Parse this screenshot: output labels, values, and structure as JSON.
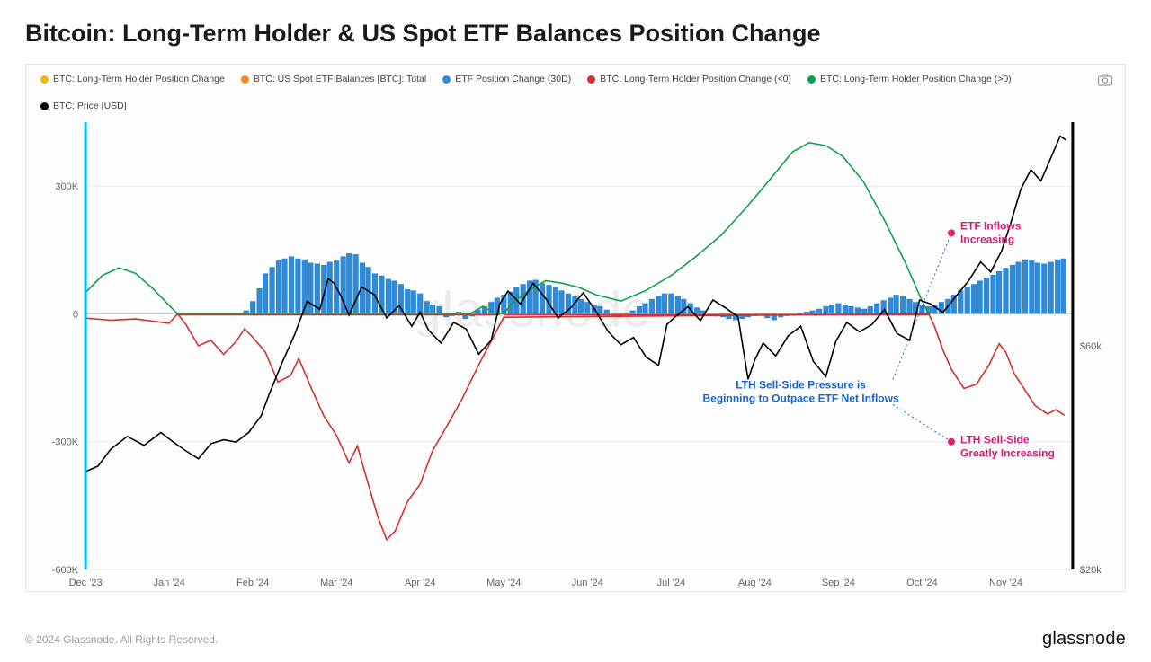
{
  "title": "Bitcoin: Long-Term Holder & US Spot ETF Balances Position Change",
  "copyright": "© 2024 Glassnode. All Rights Reserved.",
  "brand": "glassnode",
  "watermark": "glassnode",
  "legend": [
    {
      "label": "BTC: Long-Term Holder Position Change",
      "color": "#f0b90b"
    },
    {
      "label": "BTC: US Spot ETF Balances [BTC]: Total",
      "color": "#f08a24"
    },
    {
      "label": "ETF Position Change (30D)",
      "color": "#2f8ad8"
    },
    {
      "label": "BTC: Long-Term Holder Position Change (<0)",
      "color": "#d32f2f"
    },
    {
      "label": "BTC: Long-Term Holder Position Change (>0)",
      "color": "#0aa34a"
    },
    {
      "label": "BTC: Price [USD]",
      "color": "#000000"
    }
  ],
  "annotations": {
    "center": {
      "line1": "LTH Sell-Side Pressure is",
      "line2": "Beginning to Outpace ETF Net Inflows",
      "color": "#1565d8"
    },
    "top": {
      "text": "ETF Inflows Increasing",
      "color": "#d81b7a",
      "dot_color": "#e91e63"
    },
    "bottom": {
      "text": "LTH Sell-Side Greatly Increasing",
      "color": "#d81b7a",
      "dot_color": "#e91e63"
    }
  },
  "chart": {
    "type": "combo-bar-line",
    "background_color": "#fdfdfd",
    "grid_color": "#e9e9e9",
    "x": {
      "labels": [
        "Dec '23",
        "Jan '24",
        "Feb '24",
        "Mar '24",
        "Apr '24",
        "May '24",
        "Jun '24",
        "Jul '24",
        "Aug '24",
        "Sep '24",
        "Oct '24",
        "Nov '24"
      ],
      "positions": [
        0,
        1,
        2,
        3,
        4,
        5,
        6,
        7,
        8,
        9,
        10,
        11
      ],
      "max": 11.8
    },
    "y_left": {
      "min": -600000,
      "max": 450000,
      "ticks": [
        -600000,
        -300000,
        0,
        300000
      ],
      "tick_labels": [
        "-600K",
        "-300K",
        "0",
        "300K"
      ]
    },
    "y_right": {
      "min": 20000,
      "max": 100000,
      "ticks": [
        20000,
        60000
      ],
      "tick_labels": [
        "$20k",
        "$60k"
      ]
    },
    "fontsize_axis": 11,
    "colors": {
      "bars": "#2f8ad8",
      "lth_neg": "#d32f2f",
      "lth_pos": "#0aa34a",
      "price": "#000000",
      "left_bar": "#00bfff",
      "right_bar": "#000000"
    },
    "etf_bars": [
      [
        1.85,
        0
      ],
      [
        1.92,
        8000
      ],
      [
        2.0,
        30000
      ],
      [
        2.08,
        60000
      ],
      [
        2.15,
        95000
      ],
      [
        2.23,
        110000
      ],
      [
        2.31,
        125000
      ],
      [
        2.38,
        130000
      ],
      [
        2.46,
        135000
      ],
      [
        2.54,
        130000
      ],
      [
        2.62,
        128000
      ],
      [
        2.69,
        120000
      ],
      [
        2.77,
        118000
      ],
      [
        2.85,
        115000
      ],
      [
        2.92,
        122000
      ],
      [
        3.0,
        125000
      ],
      [
        3.08,
        135000
      ],
      [
        3.15,
        142000
      ],
      [
        3.23,
        140000
      ],
      [
        3.31,
        120000
      ],
      [
        3.38,
        110000
      ],
      [
        3.46,
        95000
      ],
      [
        3.54,
        90000
      ],
      [
        3.62,
        82000
      ],
      [
        3.69,
        78000
      ],
      [
        3.77,
        70000
      ],
      [
        3.85,
        58000
      ],
      [
        3.92,
        55000
      ],
      [
        4.0,
        48000
      ],
      [
        4.08,
        30000
      ],
      [
        4.15,
        22000
      ],
      [
        4.23,
        18000
      ],
      [
        4.31,
        -8000
      ],
      [
        4.38,
        -5000
      ],
      [
        4.46,
        5000
      ],
      [
        4.54,
        -12000
      ],
      [
        4.62,
        -6000
      ],
      [
        4.69,
        10000
      ],
      [
        4.77,
        18000
      ],
      [
        4.85,
        28000
      ],
      [
        4.92,
        38000
      ],
      [
        5.0,
        45000
      ],
      [
        5.08,
        52000
      ],
      [
        5.15,
        62000
      ],
      [
        5.23,
        70000
      ],
      [
        5.31,
        78000
      ],
      [
        5.38,
        80000
      ],
      [
        5.46,
        72000
      ],
      [
        5.54,
        68000
      ],
      [
        5.62,
        62000
      ],
      [
        5.69,
        55000
      ],
      [
        5.77,
        48000
      ],
      [
        5.85,
        42000
      ],
      [
        5.92,
        35000
      ],
      [
        6.0,
        28000
      ],
      [
        6.08,
        22000
      ],
      [
        6.15,
        18000
      ],
      [
        6.23,
        10000
      ],
      [
        6.31,
        -5000
      ],
      [
        6.38,
        -8000
      ],
      [
        6.46,
        -3000
      ],
      [
        6.54,
        8000
      ],
      [
        6.62,
        18000
      ],
      [
        6.69,
        25000
      ],
      [
        6.77,
        35000
      ],
      [
        6.85,
        42000
      ],
      [
        6.92,
        48000
      ],
      [
        7.0,
        48000
      ],
      [
        7.08,
        42000
      ],
      [
        7.15,
        35000
      ],
      [
        7.23,
        25000
      ],
      [
        7.31,
        15000
      ],
      [
        7.38,
        8000
      ],
      [
        7.46,
        0
      ],
      [
        7.54,
        -6000
      ],
      [
        7.62,
        -8000
      ],
      [
        7.69,
        -12000
      ],
      [
        7.77,
        -15000
      ],
      [
        7.85,
        -12000
      ],
      [
        7.92,
        -8000
      ],
      [
        8.0,
        -5000
      ],
      [
        8.08,
        -3000
      ],
      [
        8.15,
        -10000
      ],
      [
        8.23,
        -15000
      ],
      [
        8.31,
        -8000
      ],
      [
        8.38,
        -5000
      ],
      [
        8.46,
        -3000
      ],
      [
        8.54,
        2000
      ],
      [
        8.62,
        5000
      ],
      [
        8.69,
        8000
      ],
      [
        8.77,
        12000
      ],
      [
        8.85,
        18000
      ],
      [
        8.92,
        22000
      ],
      [
        9.0,
        25000
      ],
      [
        9.08,
        22000
      ],
      [
        9.15,
        18000
      ],
      [
        9.23,
        15000
      ],
      [
        9.31,
        12000
      ],
      [
        9.38,
        18000
      ],
      [
        9.46,
        25000
      ],
      [
        9.54,
        32000
      ],
      [
        9.62,
        38000
      ],
      [
        9.69,
        45000
      ],
      [
        9.77,
        42000
      ],
      [
        9.85,
        35000
      ],
      [
        9.92,
        28000
      ],
      [
        10.0,
        22000
      ],
      [
        10.08,
        18000
      ],
      [
        10.15,
        22000
      ],
      [
        10.23,
        28000
      ],
      [
        10.31,
        35000
      ],
      [
        10.38,
        45000
      ],
      [
        10.46,
        55000
      ],
      [
        10.54,
        62000
      ],
      [
        10.62,
        70000
      ],
      [
        10.69,
        78000
      ],
      [
        10.77,
        85000
      ],
      [
        10.85,
        92000
      ],
      [
        10.92,
        100000
      ],
      [
        11.0,
        108000
      ],
      [
        11.08,
        115000
      ],
      [
        11.15,
        122000
      ],
      [
        11.23,
        128000
      ],
      [
        11.31,
        125000
      ],
      [
        11.38,
        120000
      ],
      [
        11.46,
        118000
      ],
      [
        11.54,
        122000
      ],
      [
        11.62,
        128000
      ],
      [
        11.69,
        130000
      ]
    ],
    "lth_pos_series": [
      [
        0,
        50000
      ],
      [
        0.2,
        90000
      ],
      [
        0.4,
        108000
      ],
      [
        0.6,
        95000
      ],
      [
        0.8,
        60000
      ],
      [
        1.0,
        20000
      ],
      [
        1.1,
        0
      ],
      [
        4.6,
        0
      ],
      [
        4.75,
        18000
      ],
      [
        4.9,
        0
      ],
      [
        5.0,
        0
      ],
      [
        5.1,
        25000
      ],
      [
        5.3,
        55000
      ],
      [
        5.5,
        78000
      ],
      [
        5.7,
        72000
      ],
      [
        5.9,
        62000
      ],
      [
        6.1,
        45000
      ],
      [
        6.4,
        30000
      ],
      [
        6.7,
        55000
      ],
      [
        7.0,
        90000
      ],
      [
        7.3,
        135000
      ],
      [
        7.6,
        185000
      ],
      [
        7.9,
        250000
      ],
      [
        8.2,
        320000
      ],
      [
        8.45,
        380000
      ],
      [
        8.65,
        402000
      ],
      [
        8.85,
        395000
      ],
      [
        9.05,
        370000
      ],
      [
        9.3,
        310000
      ],
      [
        9.55,
        220000
      ],
      [
        9.8,
        120000
      ],
      [
        10.0,
        30000
      ],
      [
        10.08,
        0
      ]
    ],
    "lth_neg_series": [
      [
        0,
        -10000
      ],
      [
        0.3,
        -15000
      ],
      [
        0.6,
        -12000
      ],
      [
        1.0,
        -22000
      ],
      [
        1.1,
        0
      ],
      [
        1.2,
        -25000
      ],
      [
        1.35,
        -75000
      ],
      [
        1.5,
        -62000
      ],
      [
        1.65,
        -95000
      ],
      [
        1.8,
        -65000
      ],
      [
        1.9,
        -35000
      ],
      [
        2.0,
        -55000
      ],
      [
        2.15,
        -90000
      ],
      [
        2.3,
        -160000
      ],
      [
        2.45,
        -145000
      ],
      [
        2.55,
        -105000
      ],
      [
        2.7,
        -175000
      ],
      [
        2.85,
        -240000
      ],
      [
        3.0,
        -285000
      ],
      [
        3.15,
        -350000
      ],
      [
        3.25,
        -310000
      ],
      [
        3.35,
        -380000
      ],
      [
        3.5,
        -480000
      ],
      [
        3.6,
        -530000
      ],
      [
        3.7,
        -510000
      ],
      [
        3.85,
        -440000
      ],
      [
        4.0,
        -400000
      ],
      [
        4.15,
        -320000
      ],
      [
        4.3,
        -270000
      ],
      [
        4.5,
        -200000
      ],
      [
        4.7,
        -120000
      ],
      [
        4.9,
        -45000
      ],
      [
        5.0,
        -8000
      ],
      [
        10.08,
        0
      ],
      [
        10.15,
        -30000
      ],
      [
        10.25,
        -85000
      ],
      [
        10.35,
        -130000
      ],
      [
        10.5,
        -175000
      ],
      [
        10.65,
        -165000
      ],
      [
        10.8,
        -120000
      ],
      [
        10.92,
        -70000
      ],
      [
        11.0,
        -90000
      ],
      [
        11.1,
        -140000
      ],
      [
        11.25,
        -185000
      ],
      [
        11.35,
        -215000
      ],
      [
        11.5,
        -235000
      ],
      [
        11.6,
        -225000
      ],
      [
        11.7,
        -238000
      ]
    ],
    "lth_zero_segments": [
      [
        [
          1.1,
          -2000
        ],
        [
          4.95,
          -2000
        ]
      ],
      [
        [
          5.0,
          -2000
        ],
        [
          10.08,
          -2000
        ]
      ]
    ],
    "price_series": [
      [
        0,
        37500
      ],
      [
        0.15,
        38500
      ],
      [
        0.3,
        41500
      ],
      [
        0.5,
        43800
      ],
      [
        0.7,
        42200
      ],
      [
        0.9,
        44500
      ],
      [
        1.05,
        42800
      ],
      [
        1.2,
        41200
      ],
      [
        1.35,
        39800
      ],
      [
        1.5,
        42500
      ],
      [
        1.65,
        43200
      ],
      [
        1.8,
        42800
      ],
      [
        1.95,
        44500
      ],
      [
        2.1,
        47500
      ],
      [
        2.2,
        51500
      ],
      [
        2.35,
        57000
      ],
      [
        2.5,
        62000
      ],
      [
        2.65,
        68000
      ],
      [
        2.8,
        66500
      ],
      [
        2.9,
        72000
      ],
      [
        2.97,
        71200
      ],
      [
        3.05,
        69000
      ],
      [
        3.15,
        65500
      ],
      [
        3.3,
        70500
      ],
      [
        3.45,
        69200
      ],
      [
        3.6,
        65000
      ],
      [
        3.75,
        67200
      ],
      [
        3.9,
        63500
      ],
      [
        4.0,
        66000
      ],
      [
        4.1,
        62800
      ],
      [
        4.25,
        60500
      ],
      [
        4.4,
        64200
      ],
      [
        4.55,
        63000
      ],
      [
        4.7,
        58500
      ],
      [
        4.85,
        61000
      ],
      [
        4.95,
        67500
      ],
      [
        5.05,
        69800
      ],
      [
        5.2,
        67500
      ],
      [
        5.35,
        71200
      ],
      [
        5.5,
        68500
      ],
      [
        5.65,
        65000
      ],
      [
        5.8,
        66800
      ],
      [
        5.95,
        69500
      ],
      [
        6.1,
        66200
      ],
      [
        6.25,
        62500
      ],
      [
        6.4,
        60200
      ],
      [
        6.55,
        61500
      ],
      [
        6.7,
        58000
      ],
      [
        6.85,
        56500
      ],
      [
        6.95,
        63800
      ],
      [
        7.05,
        65200
      ],
      [
        7.2,
        67000
      ],
      [
        7.35,
        64500
      ],
      [
        7.5,
        68200
      ],
      [
        7.65,
        66800
      ],
      [
        7.8,
        65200
      ],
      [
        7.92,
        54000
      ],
      [
        8.0,
        57500
      ],
      [
        8.1,
        60500
      ],
      [
        8.25,
        58200
      ],
      [
        8.4,
        61800
      ],
      [
        8.55,
        63500
      ],
      [
        8.7,
        57200
      ],
      [
        8.85,
        54500
      ],
      [
        8.97,
        60800
      ],
      [
        9.1,
        64200
      ],
      [
        9.25,
        62500
      ],
      [
        9.4,
        63800
      ],
      [
        9.55,
        66500
      ],
      [
        9.7,
        62200
      ],
      [
        9.85,
        61000
      ],
      [
        9.97,
        68200
      ],
      [
        10.1,
        67500
      ],
      [
        10.25,
        66000
      ],
      [
        10.4,
        68800
      ],
      [
        10.55,
        71500
      ],
      [
        10.7,
        75000
      ],
      [
        10.82,
        73200
      ],
      [
        10.95,
        77000
      ],
      [
        11.05,
        81500
      ],
      [
        11.18,
        88000
      ],
      [
        11.3,
        91500
      ],
      [
        11.42,
        89500
      ],
      [
        11.55,
        94000
      ],
      [
        11.65,
        97500
      ],
      [
        11.72,
        96800
      ]
    ]
  }
}
